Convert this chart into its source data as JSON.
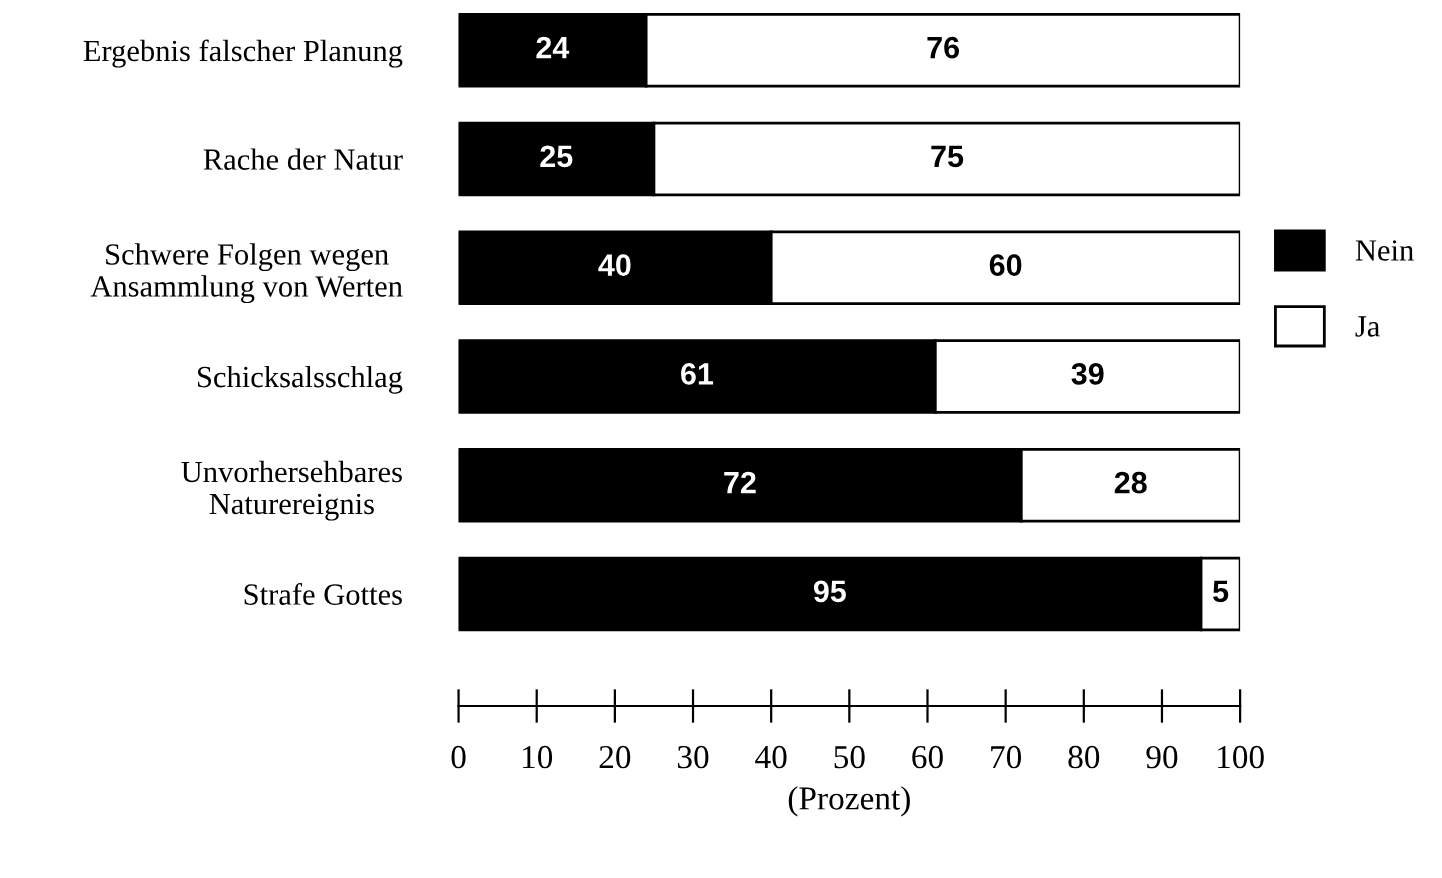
{
  "chart_data": {
    "type": "bar",
    "orientation": "horizontal",
    "stacked": true,
    "categories": [
      "Ergebnis falscher Planung",
      "Rache der Natur",
      "Schwere Folgen wegen\nAnsammlung von Werten",
      "Schicksalsschlag",
      "Unvorhersehbares\nNaturereignis",
      "Strafe Gottes"
    ],
    "series": [
      {
        "name": "Nein",
        "color": "#000000",
        "values": [
          24,
          25,
          40,
          61,
          72,
          95
        ]
      },
      {
        "name": "Ja",
        "color": "#ffffff",
        "values": [
          76,
          75,
          60,
          39,
          28,
          5
        ]
      }
    ],
    "xlim": [
      0,
      100
    ],
    "xticks": [
      0,
      10,
      20,
      30,
      40,
      50,
      60,
      70,
      80,
      90,
      100
    ],
    "xlabel": "(Prozent)",
    "data_labels": true,
    "legend": "right",
    "grid": false
  }
}
